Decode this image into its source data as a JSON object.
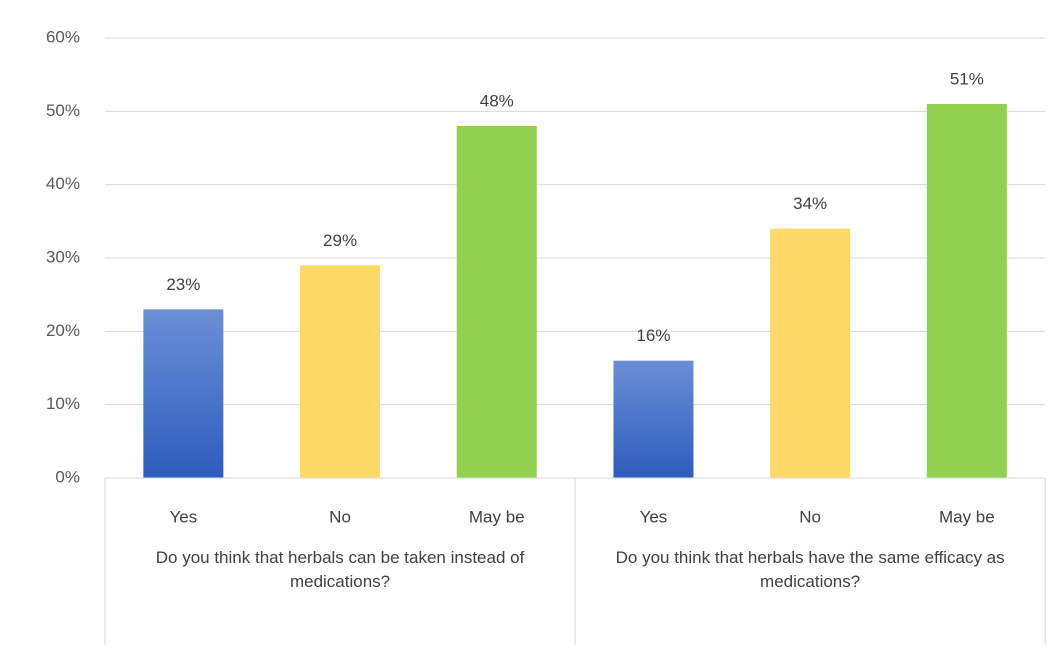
{
  "chart_data": {
    "type": "bar",
    "groups": [
      {
        "name": "Do you think that herbals can be taken instead of medications?",
        "categories": [
          "Yes",
          "No",
          "May be"
        ],
        "values": [
          23,
          29,
          48
        ],
        "value_labels": [
          "23%",
          "29%",
          "48%"
        ]
      },
      {
        "name": "Do you think that herbals have the same efficacy as medications?",
        "categories": [
          "Yes",
          "No",
          "May be"
        ],
        "values": [
          16,
          34,
          51
        ],
        "value_labels": [
          "16%",
          "34%",
          "51%"
        ]
      }
    ],
    "colors": [
      "#4472c4",
      "#ffd966",
      "#92d050"
    ],
    "ylim": [
      0,
      60
    ],
    "yticks": [
      {
        "value": 0,
        "label": "0%"
      },
      {
        "value": 10,
        "label": "10%"
      },
      {
        "value": 20,
        "label": "20%"
      },
      {
        "value": 30,
        "label": "30%"
      },
      {
        "value": 40,
        "label": "40%"
      },
      {
        "value": 50,
        "label": "50%"
      },
      {
        "value": 60,
        "label": "60%"
      }
    ],
    "grid": true
  }
}
